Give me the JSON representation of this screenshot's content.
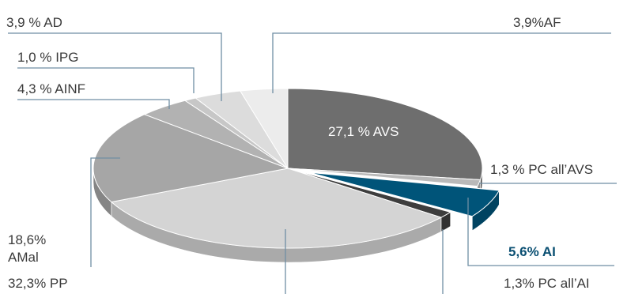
{
  "chart_data": {
    "type": "pie",
    "title": "",
    "style": "3d-exploded",
    "slices": [
      {
        "name": "AVS",
        "label": "27,1 %  AVS",
        "value": 27.1,
        "color": "#6e6e6e",
        "highlight": false
      },
      {
        "name": "PC all'AVS",
        "label": "1,3 %  PC all’AVS",
        "value": 1.3,
        "color": "#b9b9b9",
        "highlight": false
      },
      {
        "name": "AI",
        "label": "5,6%  AI",
        "value": 5.6,
        "color": "#005479",
        "highlight": true
      },
      {
        "name": "PC all'AI",
        "label": "1,3%  PC all’AI",
        "value": 1.3,
        "color": "#3d3d3d",
        "highlight": false
      },
      {
        "name": "PP",
        "label": "32,3% PP",
        "value": 32.3,
        "color": "#d4d4d4",
        "highlight": false
      },
      {
        "name": "AMal",
        "label_lines": [
          "18,6%",
          "AMal"
        ],
        "value": 18.6,
        "color": "#a6a6a6",
        "highlight": false
      },
      {
        "name": "AINF",
        "label": "4,3 %  AINF",
        "value": 4.3,
        "color": "#b2b2b2",
        "highlight": false
      },
      {
        "name": "IPG",
        "label": "1,0 %  IPG",
        "value": 1.0,
        "color": "#c7c7c7",
        "highlight": false
      },
      {
        "name": "AD",
        "label": "3,9 %  AD",
        "value": 3.9,
        "color": "#dcdcdc",
        "highlight": false
      },
      {
        "name": "AF",
        "label": "3,9%AF",
        "value": 3.9,
        "color": "#ececec",
        "highlight": false
      }
    ]
  }
}
